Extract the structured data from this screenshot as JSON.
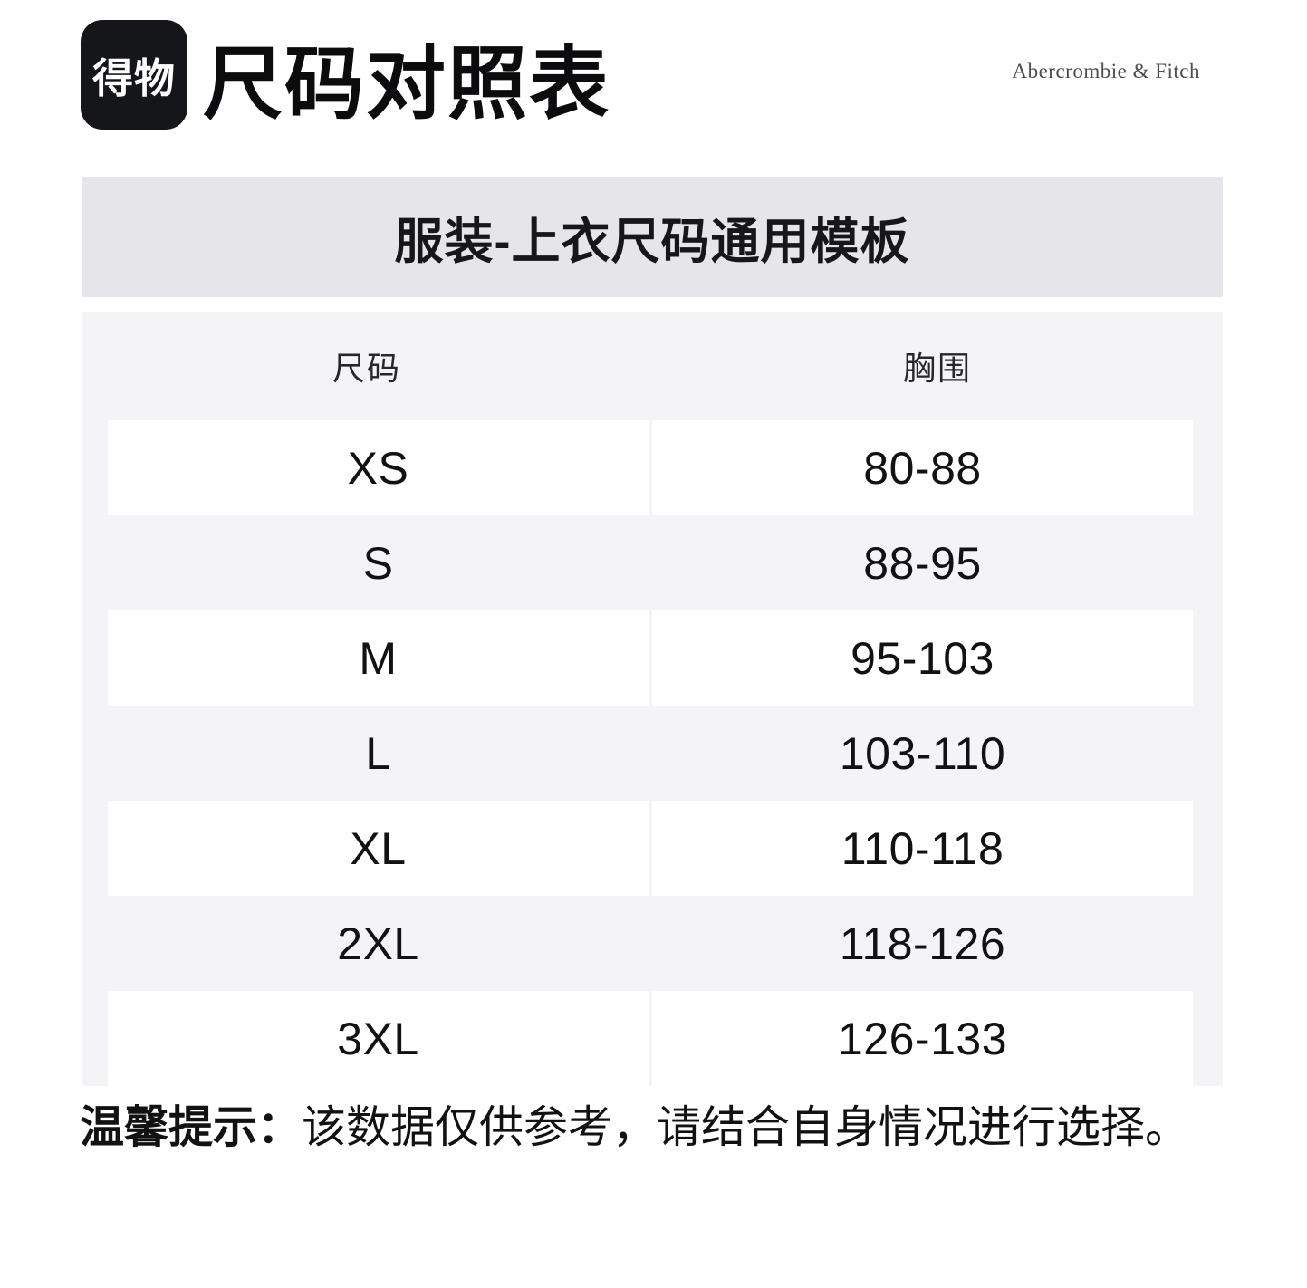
{
  "header": {
    "logo_text": "得物",
    "title": "尺码对照表",
    "brand": "Abercrombie & Fitch"
  },
  "banner": {
    "title": "服装-上衣尺码通用模板"
  },
  "size_table": {
    "columns": [
      "尺码",
      "胸围"
    ],
    "rows": [
      {
        "size": "XS",
        "chest": "80-88"
      },
      {
        "size": "S",
        "chest": "88-95"
      },
      {
        "size": "M",
        "chest": "95-103"
      },
      {
        "size": "L",
        "chest": "103-110"
      },
      {
        "size": "XL",
        "chest": "110-118"
      },
      {
        "size": "2XL",
        "chest": "118-126"
      },
      {
        "size": "3XL",
        "chest": "126-133"
      }
    ]
  },
  "footer": {
    "tip_label": "温馨提示：",
    "tip_text": "该数据仅供参考，请结合自身情况进行选择。"
  },
  "colors": {
    "logo_bg": "#15161a",
    "banner_bg": "#e5e5ea",
    "table_bg": "#f4f4f7",
    "row_stripe": "#ffffff",
    "text": "#121214"
  }
}
